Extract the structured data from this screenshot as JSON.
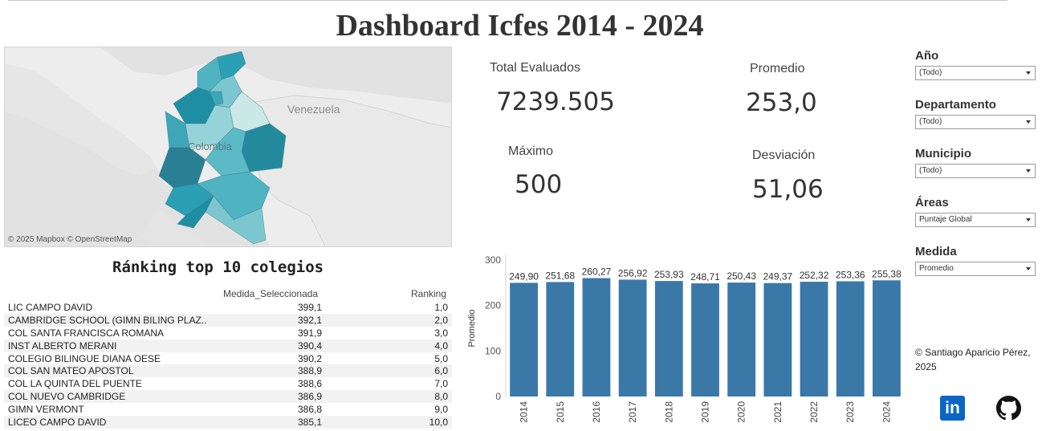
{
  "title": "Dashboard Icfes 2014 - 2024",
  "map": {
    "credit": "© 2025 Mapbox  © OpenStreetMap",
    "labels": {
      "venezuela": "Venezuela",
      "colombia": "Colombia"
    },
    "region_colors": [
      "#2b9fb4",
      "#4fb3c2",
      "#7cc7cf",
      "#1f8ea3",
      "#3da7b9",
      "#96d3d8",
      "#c9e8e6",
      "#238a9e",
      "#5bbac6",
      "#2a7f95"
    ]
  },
  "kpis": {
    "total": {
      "label": "Total Evaluados",
      "value": "7239.505"
    },
    "promedio": {
      "label": "Promedio",
      "value": "253,0"
    },
    "maximo": {
      "label": "Máximo",
      "value": "500"
    },
    "desviacion": {
      "label": "Desviación",
      "value": "51,06"
    }
  },
  "filters": {
    "anio": {
      "label": "Año",
      "value": "(Todo)"
    },
    "departamento": {
      "label": "Departamento",
      "value": "(Todo)"
    },
    "municipio": {
      "label": "Municipio",
      "value": "(Todo)"
    },
    "areas": {
      "label": "Áreas",
      "value": "Puntaje Global"
    },
    "medida": {
      "label": "Medida",
      "value": "Promedio"
    }
  },
  "ranking": {
    "title": "Ránking top 10 colegios",
    "headers": {
      "medida": "Medida_Seleccionada",
      "rank": "Ranking"
    },
    "rows": [
      {
        "name": "LIC CAMPO DAVID",
        "medida": "399,1",
        "rank": "1,0"
      },
      {
        "name": "CAMBRIDGE SCHOOL (GIMN BILING PLAZ..",
        "medida": "392,1",
        "rank": "2,0"
      },
      {
        "name": "COL SANTA FRANCISCA ROMANA",
        "medida": "391,9",
        "rank": "3,0"
      },
      {
        "name": "INST ALBERTO MERANI",
        "medida": "390,4",
        "rank": "4,0"
      },
      {
        "name": "COLEGIO BILINGUE DIANA OESE",
        "medida": "390,2",
        "rank": "5,0"
      },
      {
        "name": "COL SAN MATEO APOSTOL",
        "medida": "388,9",
        "rank": "6,0"
      },
      {
        "name": "COL LA QUINTA DEL PUENTE",
        "medida": "388,6",
        "rank": "7,0"
      },
      {
        "name": "COL NUEVO CAMBRIDGE",
        "medida": "386,9",
        "rank": "8,0"
      },
      {
        "name": "GIMN VERMONT",
        "medida": "386,8",
        "rank": "9,0"
      },
      {
        "name": "LICEO CAMPO DAVID",
        "medida": "385,1",
        "rank": "10,0"
      }
    ]
  },
  "chart_data": {
    "type": "bar",
    "categories": [
      "2014",
      "2015",
      "2016",
      "2017",
      "2018",
      "2019",
      "2020",
      "2021",
      "2022",
      "2023",
      "2024"
    ],
    "values": [
      249.9,
      251.68,
      260.27,
      256.92,
      253.93,
      248.71,
      250.43,
      249.37,
      252.32,
      253.36,
      255.38
    ],
    "data_labels": [
      "249,90",
      "251,68",
      "260,27",
      "256,92",
      "253,93",
      "248,71",
      "250,43",
      "249,37",
      "252,32",
      "253,36",
      "255,38"
    ],
    "ylabel": "Promedio",
    "yticks": [
      "0",
      "100",
      "200",
      "300"
    ],
    "ylim": [
      0,
      300
    ],
    "color": "#3a78a8"
  },
  "credit": "© Santiago Aparicio Pérez, 2025",
  "icons": {
    "linkedin": "linkedin-icon",
    "github": "github-icon"
  },
  "linkedin_text": "in"
}
